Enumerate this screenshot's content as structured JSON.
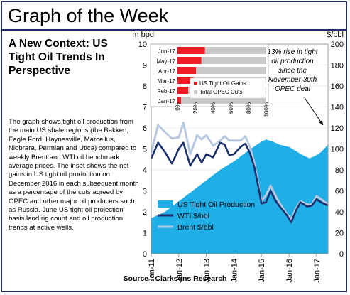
{
  "page": {
    "banner_title": "Graph of the Week",
    "headline": "A New Context: US Tight Oil Trends In Perspective",
    "description": "The graph shows tight oil production from the main US shale regions (the Bakken, Eagle Ford, Haynesville, Marcellus, Niobrara, Permian and Utica) compared to weekly Brent and WTI oil benchmark average prices. The inset shows the net gains in US tight oil production on December 2016 in each subsequent month as a percentage of the cuts agreed by OPEC and other major oil producers such as Russia. June US tight oil projection basis land rig count and oil production trends at active wells.",
    "source": "Source : Clarksons Research"
  },
  "colors": {
    "production": "#1faee6",
    "wti": "#1a2f6b",
    "brent": "#b8c8e0",
    "gains": "#ee1c24",
    "opec": "#c8c8c8",
    "frame": "#1a2f6b"
  },
  "chart_data": [
    {
      "type": "area",
      "left_axis_label": "m bpd",
      "right_axis_label": "$/bbl",
      "ylim_left": [
        0,
        10
      ],
      "yticks_left": [
        "0",
        "1",
        "2",
        "3",
        "4",
        "5",
        "6",
        "7",
        "8",
        "9",
        "10"
      ],
      "ylim_right": [
        0,
        200
      ],
      "yticks_right": [
        "0",
        "20",
        "40",
        "60",
        "80",
        "100",
        "120",
        "140",
        "160",
        "180",
        "200"
      ],
      "xlim": [
        "2011-01",
        "2017-06"
      ],
      "xticks": [
        "Jan-11",
        "Jan-12",
        "Jan-13",
        "Jan-14",
        "Jan-15",
        "Jan-16",
        "Jan-17"
      ],
      "annotation": "13% rise in tight oil production since the November 30th OPEC deal",
      "legend": [
        "US Tight Oil Production",
        "WTI $/bbl",
        "Brent $/bbl"
      ],
      "series": [
        {
          "name": "US Tight Oil Production",
          "axis": "left",
          "unit": "m bpd",
          "x": [
            "2011-01",
            "2011-07",
            "2012-01",
            "2012-07",
            "2013-01",
            "2013-07",
            "2014-01",
            "2014-07",
            "2015-01",
            "2015-03",
            "2015-06",
            "2015-09",
            "2016-01",
            "2016-04",
            "2016-07",
            "2016-10",
            "2017-01",
            "2017-03",
            "2017-06"
          ],
          "y": [
            1.7,
            2.0,
            2.5,
            3.0,
            3.5,
            4.0,
            4.4,
            4.9,
            5.35,
            5.45,
            5.35,
            5.2,
            5.1,
            4.9,
            4.7,
            4.55,
            4.7,
            4.85,
            5.2
          ]
        },
        {
          "name": "WTI $/bbl",
          "axis": "right",
          "unit": "$/bbl",
          "x": [
            "2011-01",
            "2011-04",
            "2011-07",
            "2011-10",
            "2012-01",
            "2012-03",
            "2012-06",
            "2012-09",
            "2012-11",
            "2013-01",
            "2013-04",
            "2013-07",
            "2013-09",
            "2013-11",
            "2014-01",
            "2014-04",
            "2014-06",
            "2014-08",
            "2014-10",
            "2014-12",
            "2015-01",
            "2015-03",
            "2015-05",
            "2015-07",
            "2015-09",
            "2015-12",
            "2016-02",
            "2016-04",
            "2016-06",
            "2016-09",
            "2016-11",
            "2017-01",
            "2017-03",
            "2017-06"
          ],
          "y": [
            91,
            106,
            97,
            86,
            100,
            106,
            84,
            95,
            87,
            95,
            92,
            106,
            104,
            94,
            95,
            102,
            105,
            96,
            82,
            60,
            48,
            49,
            60,
            51,
            45,
            37,
            30,
            41,
            49,
            45,
            46,
            52,
            49,
            46
          ]
        },
        {
          "name": "Brent $/bbl",
          "axis": "right",
          "unit": "$/bbl",
          "x": [
            "2011-01",
            "2011-04",
            "2011-07",
            "2011-10",
            "2012-01",
            "2012-03",
            "2012-06",
            "2012-09",
            "2012-11",
            "2013-01",
            "2013-04",
            "2013-07",
            "2013-09",
            "2013-11",
            "2014-01",
            "2014-04",
            "2014-06",
            "2014-08",
            "2014-10",
            "2014-12",
            "2015-01",
            "2015-03",
            "2015-05",
            "2015-07",
            "2015-09",
            "2015-12",
            "2016-02",
            "2016-04",
            "2016-06",
            "2016-09",
            "2016-11",
            "2017-01",
            "2017-03",
            "2017-06"
          ],
          "y": [
            96,
            123,
            116,
            110,
            111,
            125,
            95,
            113,
            109,
            113,
            103,
            108,
            112,
            108,
            108,
            108,
            112,
            102,
            86,
            62,
            50,
            56,
            65,
            56,
            48,
            38,
            33,
            43,
            50,
            47,
            47,
            55,
            52,
            47
          ]
        }
      ]
    },
    {
      "type": "bar",
      "orientation": "horizontal",
      "categories": [
        "Jun-17",
        "May-17",
        "Apr-17",
        "Mar-17",
        "Feb-17",
        "Jan-17"
      ],
      "xticks": [
        "0%",
        "20%",
        "40%",
        "60%",
        "80%",
        "100%"
      ],
      "xlim": [
        0,
        100
      ],
      "stacked_100": true,
      "series": [
        {
          "name": "US Tight Oil Gains",
          "unit": "%",
          "values": [
            31,
            27,
            21,
            18,
            12,
            4
          ]
        },
        {
          "name": "Total OPEC Cuts",
          "unit": "%",
          "values": [
            69,
            73,
            79,
            82,
            88,
            96
          ]
        }
      ]
    }
  ]
}
